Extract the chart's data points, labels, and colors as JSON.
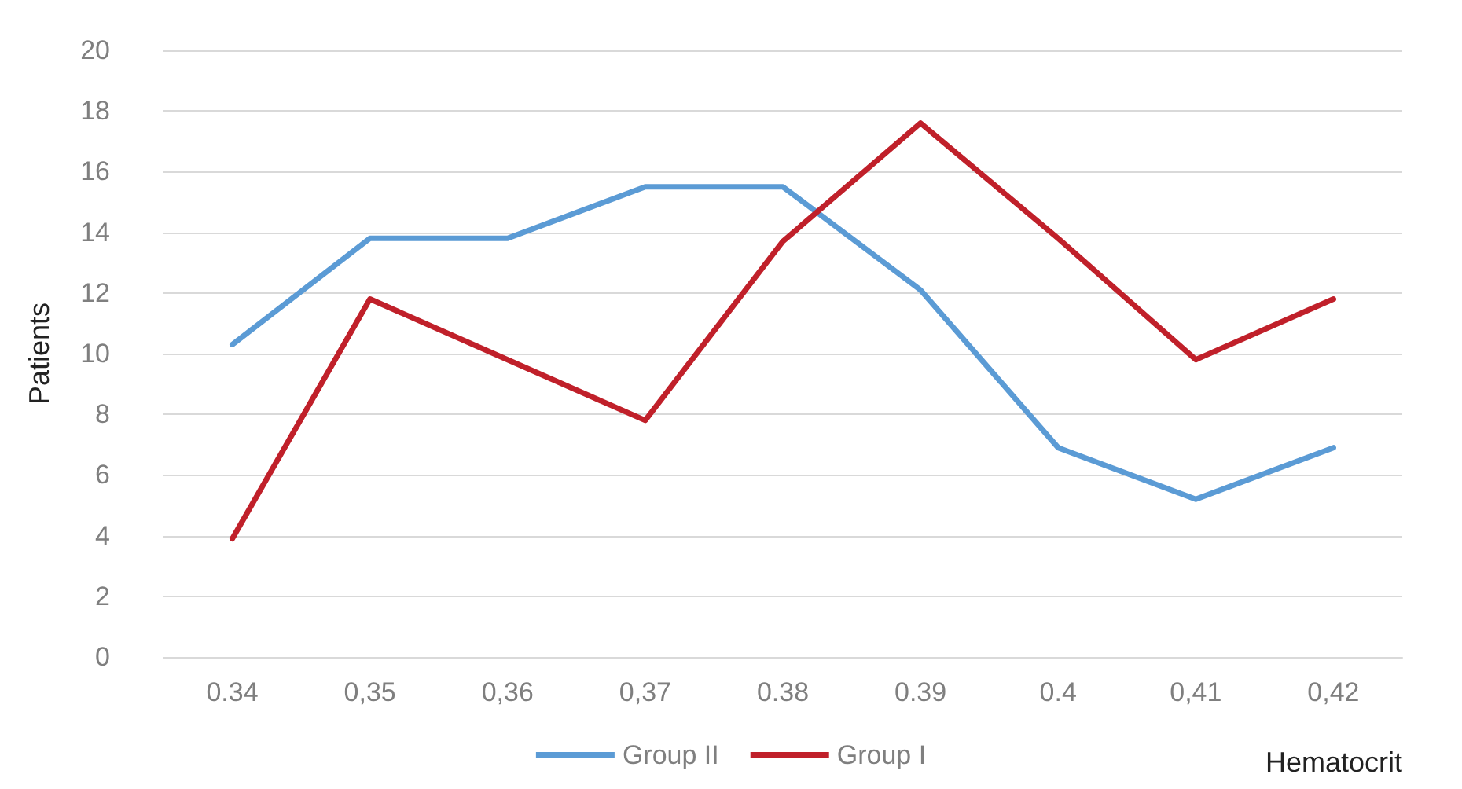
{
  "chart_data": {
    "type": "line",
    "xlabel": "Hematocrit",
    "ylabel": "Patients",
    "categories": [
      "0.34",
      "0,35",
      "0,36",
      "0,37",
      "0.38",
      "0.39",
      "0.4",
      "0,41",
      "0,42"
    ],
    "series": [
      {
        "name": "Group II",
        "color": "#5b9bd5",
        "values": [
          10.3,
          13.8,
          13.8,
          15.5,
          15.5,
          12.1,
          6.9,
          5.2,
          6.9
        ]
      },
      {
        "name": "Group I",
        "color": "#c0202a",
        "values": [
          3.9,
          11.8,
          9.8,
          7.8,
          13.7,
          17.6,
          13.8,
          9.8,
          11.8
        ]
      }
    ],
    "ylim": [
      0,
      20
    ],
    "yticks": [
      0,
      2,
      4,
      6,
      8,
      10,
      12,
      14,
      16,
      18,
      20
    ],
    "grid": "y",
    "legend": "bottom",
    "marker": "none",
    "line_style": "solid"
  }
}
